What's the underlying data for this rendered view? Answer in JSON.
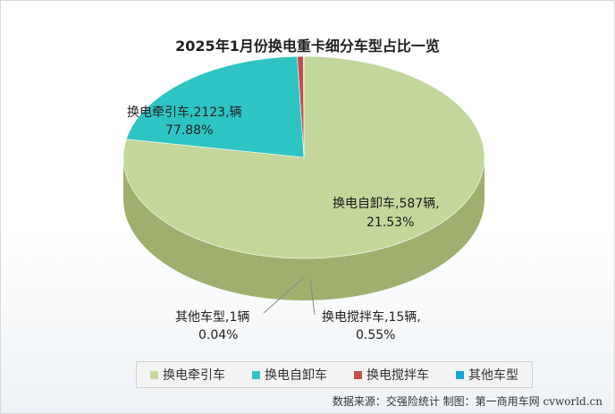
{
  "chart_data": {
    "type": "pie",
    "title": "2025年1月份换电重卡细分车型占比一览",
    "unit": "辆",
    "slices": [
      {
        "name": "换电牵引车",
        "value": 2123,
        "percent": "77.88%",
        "color": "#c4d79b",
        "side_color": "#9fb06e",
        "label_line1": "换电牵引车,2123,辆",
        "label_line2": "77.88%"
      },
      {
        "name": "换电自卸车",
        "value": 587,
        "percent": "21.53%",
        "color": "#2ec4c4",
        "side_color": "#14494c",
        "label_line1": "换电自卸车,587辆,",
        "label_line2": "21.53%"
      },
      {
        "name": "换电搅拌车",
        "value": 15,
        "percent": "0.55%",
        "color": "#c0504d",
        "side_color": "#7a2020",
        "label_line1": "换电搅拌车,15辆,",
        "label_line2": "0.55%"
      },
      {
        "name": "其他车型",
        "value": 1,
        "percent": "0.04%",
        "color": "#1aa3d9",
        "side_color": "#0d5d80",
        "label_line1": "其他车型,1辆",
        "label_line2": "0.04%"
      }
    ]
  },
  "footer": {
    "source": "数据来源：交强险统计 制图：第一商用车网 cvworld.cn"
  }
}
